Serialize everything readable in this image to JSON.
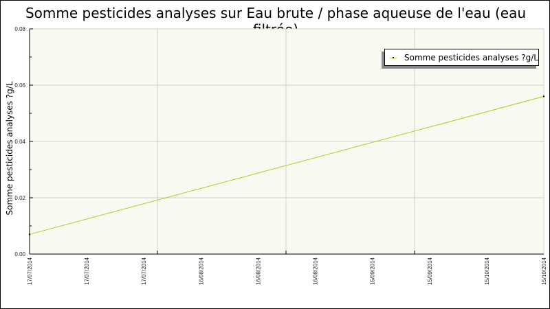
{
  "chart_data": {
    "type": "line",
    "title": "Somme pesticides analyses sur Eau brute / phase aqueuse de l'eau (eau filtrée)",
    "xlabel": "",
    "ylabel": "Somme pesticides analyses ?g/L",
    "x_tick_labels": [
      "17/07/2014",
      "17/07/2014",
      "17/07/2014",
      "16/08/2014",
      "16/08/2014",
      "16/08/2014",
      "15/09/2014",
      "15/09/2014",
      "15/10/2014",
      "15/10/2014"
    ],
    "y_tick_labels": [
      "0.00",
      "0.02",
      "0.04",
      "0.06",
      "0.08"
    ],
    "ylim": [
      0,
      0.08
    ],
    "x": [
      "17/07/2014",
      "15/10/2014"
    ],
    "series": [
      {
        "name": "Somme pesticides analyses ?g/L",
        "values": [
          0.007,
          0.056
        ],
        "color": "#a8d020"
      }
    ],
    "grid": true,
    "legend_position": "top-right",
    "plot_background": "#f8f9f0"
  }
}
